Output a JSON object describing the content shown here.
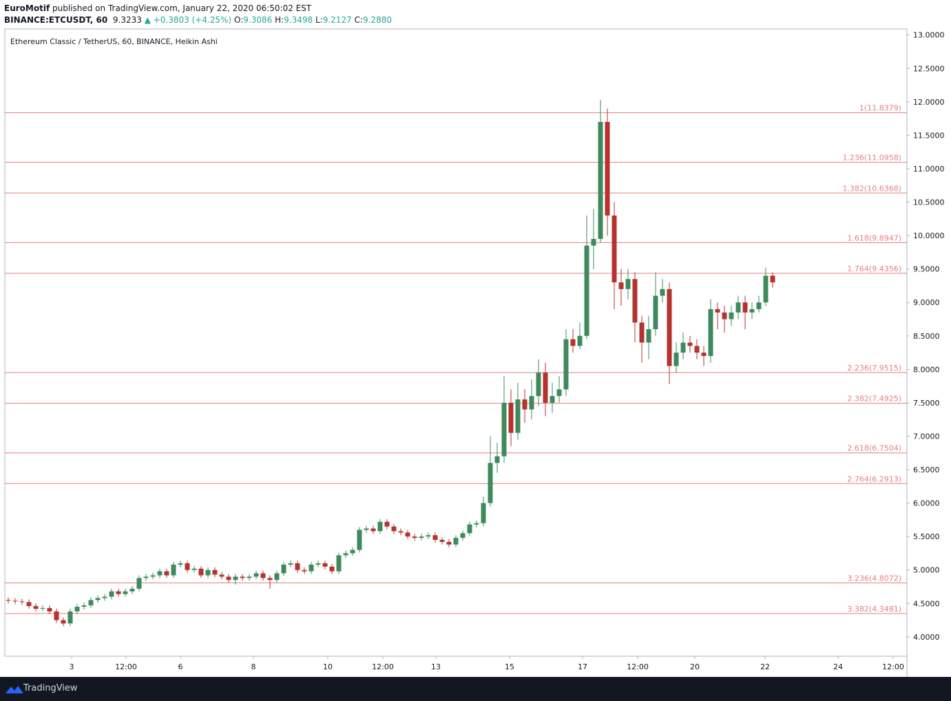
{
  "header": {
    "author": "EuroMotif",
    "published": "published on TradingView.com, January 22, 2020 06:50:02 EST",
    "symbol": "BINANCE:ETCUSDT, 60",
    "last": "9.3233",
    "change": "▲ +0.3803 (+4.25%)",
    "ohlc": [
      {
        "key": "O:",
        "value": "9.3086"
      },
      {
        "key": "H:",
        "value": "9.3498"
      },
      {
        "key": "L:",
        "value": "9.2127"
      },
      {
        "key": "C:",
        "value": "9.2880"
      }
    ]
  },
  "footer": {
    "brand": "TradingView"
  },
  "chart_data": {
    "type": "candlestick",
    "title": "Ethereum Classic / TetherUS, 60, BINANCE, Heikin Ashi",
    "up_color": "#3f8a5c",
    "down_color": "#b5322d",
    "fib_color": "#e57f7f",
    "open": [
      4.55,
      4.54,
      4.53,
      4.52,
      4.46,
      4.42,
      4.43,
      4.38,
      4.25,
      4.2,
      4.38,
      4.45,
      4.47,
      4.55,
      4.58,
      4.6,
      4.68,
      4.64,
      4.68,
      4.72,
      4.88,
      4.9,
      4.92,
      4.98,
      4.92,
      5.08,
      5.1,
      5.0,
      5.02,
      4.92,
      5.0,
      4.93,
      4.9,
      4.85,
      4.9,
      4.88,
      4.9,
      4.95,
      4.88,
      4.85,
      4.95,
      5.08,
      5.1,
      5.0,
      4.98,
      5.08,
      5.1,
      5.05,
      4.98,
      5.22,
      5.25,
      5.3,
      5.6,
      5.62,
      5.58,
      5.72,
      5.65,
      5.58,
      5.56,
      5.5,
      5.48,
      5.5,
      5.52,
      5.45,
      5.42,
      5.38,
      5.48,
      5.55,
      5.68,
      5.7,
      6.0,
      6.6,
      6.7,
      7.5,
      7.05,
      7.55,
      7.4,
      7.6,
      7.95,
      7.5,
      7.6,
      7.7,
      8.45,
      8.35,
      8.5,
      9.85,
      9.95,
      11.7,
      10.3,
      9.3,
      9.2,
      9.35,
      8.7,
      8.4,
      8.6,
      9.1,
      9.2,
      8.05,
      8.25,
      8.4,
      8.35,
      8.25,
      8.2,
      8.9,
      8.85,
      8.75,
      8.85,
      9.0,
      8.85,
      8.9,
      9.0,
      9.4
    ],
    "high": [
      4.59,
      4.58,
      4.57,
      4.56,
      4.5,
      4.47,
      4.47,
      4.42,
      4.29,
      4.42,
      4.49,
      4.51,
      4.59,
      4.62,
      4.64,
      4.72,
      4.72,
      4.72,
      4.76,
      4.92,
      4.94,
      4.96,
      5.02,
      5.02,
      5.12,
      5.14,
      5.14,
      5.06,
      5.06,
      5.04,
      5.04,
      4.97,
      4.94,
      4.94,
      4.94,
      4.94,
      4.99,
      4.99,
      4.92,
      4.99,
      5.12,
      5.14,
      5.14,
      5.04,
      5.12,
      5.14,
      5.14,
      5.09,
      5.26,
      5.29,
      5.34,
      5.64,
      5.66,
      5.66,
      5.76,
      5.76,
      5.69,
      5.62,
      5.6,
      5.54,
      5.54,
      5.56,
      5.56,
      5.49,
      5.46,
      5.52,
      5.59,
      5.72,
      5.74,
      6.1,
      7.0,
      6.9,
      7.9,
      7.7,
      7.8,
      7.7,
      7.85,
      8.15,
      8.1,
      7.8,
      7.9,
      8.6,
      8.6,
      8.7,
      10.3,
      10.4,
      12.03,
      11.9,
      10.5,
      9.5,
      9.5,
      9.45,
      8.8,
      8.8,
      9.45,
      9.35,
      9.3,
      8.4,
      8.55,
      8.5,
      8.45,
      8.35,
      9.05,
      9.0,
      8.95,
      8.95,
      9.1,
      9.1,
      9.0,
      9.1,
      9.52,
      9.45
    ],
    "low": [
      4.5,
      4.49,
      4.48,
      4.42,
      4.38,
      4.38,
      4.34,
      4.21,
      4.16,
      4.16,
      4.34,
      4.41,
      4.43,
      4.51,
      4.54,
      4.56,
      4.6,
      4.6,
      4.64,
      4.68,
      4.84,
      4.86,
      4.88,
      4.88,
      4.88,
      5.04,
      4.96,
      4.96,
      4.88,
      4.88,
      4.89,
      4.86,
      4.81,
      4.78,
      4.84,
      4.84,
      4.86,
      4.84,
      4.72,
      4.81,
      4.91,
      5.04,
      4.96,
      4.94,
      4.94,
      5.04,
      5.01,
      4.94,
      4.94,
      5.18,
      5.21,
      5.26,
      5.56,
      5.54,
      5.54,
      5.61,
      5.54,
      5.52,
      5.46,
      5.44,
      5.44,
      5.46,
      5.41,
      5.38,
      5.34,
      5.34,
      5.44,
      5.51,
      5.64,
      5.65,
      5.95,
      6.45,
      6.6,
      6.85,
      6.95,
      7.2,
      7.25,
      7.45,
      7.3,
      7.35,
      7.5,
      7.6,
      8.25,
      8.3,
      8.45,
      9.5,
      9.9,
      10.0,
      8.9,
      8.95,
      9.05,
      8.4,
      8.1,
      8.15,
      8.5,
      9.0,
      7.78,
      7.95,
      8.15,
      8.25,
      8.15,
      8.05,
      8.1,
      8.6,
      8.55,
      8.65,
      8.75,
      8.6,
      8.75,
      8.85,
      8.95,
      9.22
    ],
    "close": [
      4.54,
      4.53,
      4.52,
      4.46,
      4.42,
      4.43,
      4.38,
      4.25,
      4.2,
      4.38,
      4.45,
      4.47,
      4.55,
      4.58,
      4.6,
      4.68,
      4.64,
      4.68,
      4.72,
      4.88,
      4.9,
      4.92,
      4.98,
      4.92,
      5.08,
      5.1,
      5.0,
      5.02,
      4.92,
      5.0,
      4.93,
      4.9,
      4.85,
      4.9,
      4.88,
      4.9,
      4.95,
      4.88,
      4.85,
      4.95,
      5.08,
      5.1,
      5.0,
      4.98,
      5.08,
      5.1,
      5.05,
      4.98,
      5.22,
      5.25,
      5.3,
      5.6,
      5.62,
      5.58,
      5.72,
      5.65,
      5.58,
      5.56,
      5.5,
      5.48,
      5.5,
      5.52,
      5.45,
      5.42,
      5.38,
      5.48,
      5.55,
      5.68,
      5.7,
      6.0,
      6.6,
      6.7,
      7.5,
      7.05,
      7.55,
      7.4,
      7.6,
      7.95,
      7.5,
      7.6,
      7.7,
      8.45,
      8.35,
      8.5,
      9.85,
      9.95,
      11.7,
      10.3,
      9.3,
      9.2,
      9.35,
      8.7,
      8.4,
      8.6,
      9.1,
      9.2,
      8.05,
      8.25,
      8.4,
      8.35,
      8.25,
      8.2,
      8.9,
      8.85,
      8.75,
      8.85,
      9.0,
      8.85,
      8.9,
      9.0,
      9.4,
      9.3
    ],
    "xlim": [
      0,
      131
    ],
    "xticks": [
      {
        "value": 9.7,
        "label": "3"
      },
      {
        "value": 17.6,
        "label": "12:00"
      },
      {
        "value": 25.5,
        "label": "6"
      },
      {
        "value": 36.1,
        "label": "8"
      },
      {
        "value": 46.9,
        "label": "10"
      },
      {
        "value": 54.9,
        "label": "12:00"
      },
      {
        "value": 62.6,
        "label": "13"
      },
      {
        "value": 73.3,
        "label": "15"
      },
      {
        "value": 83.9,
        "label": "17"
      },
      {
        "value": 91.9,
        "label": "12:00"
      },
      {
        "value": 100.2,
        "label": "20"
      },
      {
        "value": 110.4,
        "label": "22"
      },
      {
        "value": 121,
        "label": "24"
      },
      {
        "value": 129,
        "label": "12:00"
      }
    ],
    "ylim": [
      3.71,
      13.09
    ],
    "yticks": [
      {
        "value": 4,
        "label": "4.0000"
      },
      {
        "value": 4.5,
        "label": "4.5000"
      },
      {
        "value": 5,
        "label": "5.0000"
      },
      {
        "value": 5.5,
        "label": "5.5000"
      },
      {
        "value": 6,
        "label": "6.0000"
      },
      {
        "value": 6.5,
        "label": "6.5000"
      },
      {
        "value": 7,
        "label": "7.0000"
      },
      {
        "value": 7.5,
        "label": "7.5000"
      },
      {
        "value": 8,
        "label": "8.0000"
      },
      {
        "value": 8.5,
        "label": "8.5000"
      },
      {
        "value": 9,
        "label": "9.0000"
      },
      {
        "value": 9.5,
        "label": "9.5000"
      },
      {
        "value": 10,
        "label": "10.0000"
      },
      {
        "value": 10.5,
        "label": "10.5000"
      },
      {
        "value": 11,
        "label": "11.0000"
      },
      {
        "value": 11.5,
        "label": "11.5000"
      },
      {
        "value": 12,
        "label": "12.0000"
      },
      {
        "value": 12.5,
        "label": "12.5000"
      },
      {
        "value": 13,
        "label": "13.0000"
      }
    ],
    "fib_levels": [
      {
        "value": 11.8379,
        "label": "1(11.8379)"
      },
      {
        "value": 11.0958,
        "label": "1.236(11.0958)"
      },
      {
        "value": 10.6368,
        "label": "1.382(10.6368)"
      },
      {
        "value": 9.8947,
        "label": "1.618(9.8947)"
      },
      {
        "value": 9.4356,
        "label": "1.764(9.4356)"
      },
      {
        "value": 7.9515,
        "label": "2.236(7.9515)"
      },
      {
        "value": 7.4925,
        "label": "2.382(7.4925)"
      },
      {
        "value": 6.7504,
        "label": "2.618(6.7504)"
      },
      {
        "value": 6.2913,
        "label": "2.764(6.2913)"
      },
      {
        "value": 4.8072,
        "label": "3.236(4.8072)"
      },
      {
        "value": 4.3481,
        "label": "3.382(4.3481)"
      }
    ]
  }
}
